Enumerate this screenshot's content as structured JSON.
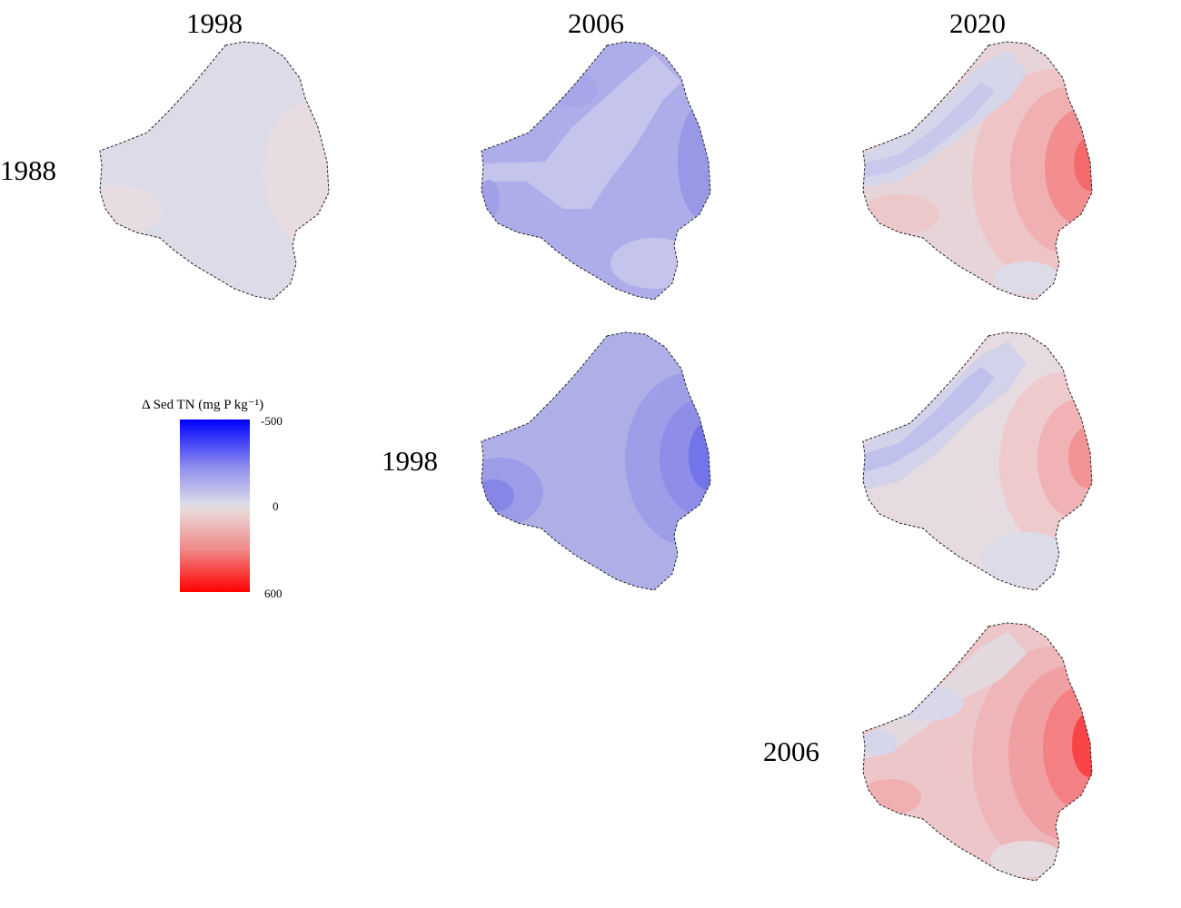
{
  "columns": [
    "1998",
    "2006",
    "2020"
  ],
  "rows": [
    "1988",
    "1998",
    "2006"
  ],
  "legend": {
    "title": "Δ Sed TN (mg P kg⁻¹)",
    "ticks": [
      "-500",
      "0",
      "600"
    ],
    "min": -500,
    "max": 600,
    "colors": {
      "low": "#0000ff",
      "mid": "#dcdce8",
      "high": "#ff0000"
    }
  },
  "panels": [
    {
      "row": "1988",
      "column": "1998",
      "pattern": "near-zero, slight positive patches east and southwest"
    },
    {
      "row": "1988",
      "column": "2006",
      "pattern": "moderate negative throughout, stronger along east edge"
    },
    {
      "row": "1988",
      "column": "2020",
      "pattern": "negative northwest, strong positive east"
    },
    {
      "row": "1998",
      "column": "2006",
      "pattern": "moderate negative, strongest on east edge and southwest"
    },
    {
      "row": "1998",
      "column": "2020",
      "pattern": "negative northwest, positive east"
    },
    {
      "row": "2006",
      "column": "2020",
      "pattern": "slight negative north, strong positive east"
    }
  ]
}
